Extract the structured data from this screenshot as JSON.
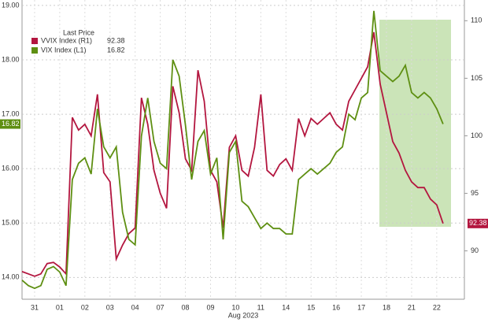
{
  "chart_data": {
    "type": "line",
    "legend_title": "Last Price",
    "x_label": "Aug 2023",
    "x": [
      0,
      0.25,
      0.5,
      0.75,
      1,
      1.25,
      1.5,
      1.75,
      2,
      2.25,
      2.5,
      2.75,
      3,
      3.25,
      3.5,
      3.75,
      4,
      4.25,
      4.5,
      4.75,
      5,
      5.25,
      5.5,
      5.75,
      6,
      6.25,
      6.5,
      6.75,
      7,
      7.25,
      7.5,
      7.75,
      8,
      8.25,
      8.5,
      8.75,
      9,
      9.25,
      9.5,
      9.75,
      10,
      10.25,
      10.5,
      10.75,
      11,
      11.25,
      11.5,
      11.75,
      12,
      12.25,
      12.5,
      12.75,
      13,
      13.25,
      13.5,
      13.75,
      14,
      14.25,
      14.5,
      14.75,
      15,
      15.25,
      15.5,
      15.75,
      16,
      16.25,
      16.5,
      16.75
    ],
    "xlim": [
      0,
      17.6
    ],
    "xticks": [
      {
        "value": 0.5,
        "label": "31"
      },
      {
        "value": 1.5,
        "label": "01"
      },
      {
        "value": 2.5,
        "label": "02"
      },
      {
        "value": 3.5,
        "label": "03"
      },
      {
        "value": 4.5,
        "label": "04"
      },
      {
        "value": 5.5,
        "label": "07"
      },
      {
        "value": 6.5,
        "label": "08"
      },
      {
        "value": 7.5,
        "label": "09"
      },
      {
        "value": 8.5,
        "label": "10"
      },
      {
        "value": 9.5,
        "label": "11"
      },
      {
        "value": 10.5,
        "label": "14"
      },
      {
        "value": 11.5,
        "label": "15"
      },
      {
        "value": 12.5,
        "label": "16"
      },
      {
        "value": 13.5,
        "label": "17"
      },
      {
        "value": 14.5,
        "label": "18"
      },
      {
        "value": 15.5,
        "label": "21"
      },
      {
        "value": 16.5,
        "label": "22"
      }
    ],
    "ylim": [
      13.6,
      19.1
    ],
    "yticks": [
      {
        "value": 14,
        "label": "14.00"
      },
      {
        "value": 15,
        "label": "15.00"
      },
      {
        "value": 16,
        "label": "16.00"
      },
      {
        "value": 17,
        "label": "17.00"
      },
      {
        "value": 18,
        "label": "18.00"
      },
      {
        "value": 19,
        "label": "19.00"
      }
    ],
    "y2lim": [
      85.8,
      111.8
    ],
    "y2ticks": [
      90,
      95,
      100,
      105,
      110
    ],
    "grid": true,
    "series": [
      {
        "name": "VVIX Index (R1)",
        "color": "#b3163f",
        "axis": "y2",
        "values": [
          88.2,
          88.0,
          87.8,
          88.0,
          88.9,
          89.0,
          88.6,
          88.0,
          101.6,
          100.5,
          101.0,
          100.0,
          103.6,
          96.8,
          96.0,
          89.3,
          90.5,
          91.5,
          92.0,
          103.3,
          101.0,
          97.0,
          95.0,
          93.7,
          104.3,
          102.0,
          98.0,
          97.0,
          105.7,
          103.0,
          97.0,
          96.0,
          92.0,
          99.0,
          100.0,
          97.0,
          96.5,
          99.0,
          103.6,
          97.0,
          96.5,
          97.5,
          98.0,
          97.0,
          101.5,
          100.0,
          101.5,
          101.0,
          101.5,
          102.0,
          101.0,
          100.5,
          103.0,
          104.0,
          105.0,
          106.0,
          109.0,
          104.5,
          102.0,
          99.5,
          98.5,
          97.0,
          96.0,
          95.5,
          95.5,
          94.5,
          94.0,
          92.38
        ]
      },
      {
        "name": "VIX Index (L1)",
        "color": "#5e8f12",
        "values": [
          13.95,
          13.85,
          13.8,
          13.85,
          14.15,
          14.2,
          14.1,
          13.85,
          15.8,
          16.1,
          16.2,
          15.9,
          17.1,
          16.4,
          16.2,
          16.4,
          15.2,
          14.7,
          14.6,
          16.6,
          17.3,
          16.5,
          16.1,
          16.0,
          18.0,
          17.7,
          16.8,
          15.8,
          16.5,
          16.7,
          15.9,
          16.2,
          14.7,
          16.3,
          16.5,
          15.4,
          15.3,
          15.1,
          14.9,
          15.0,
          14.9,
          14.9,
          14.8,
          14.8,
          15.8,
          15.9,
          16.0,
          15.9,
          16.0,
          16.1,
          16.3,
          16.4,
          17.0,
          16.9,
          17.3,
          17.4,
          18.9,
          17.8,
          17.7,
          17.6,
          17.7,
          17.9,
          17.4,
          17.3,
          17.4,
          17.3,
          17.1,
          16.82
        ]
      }
    ]
  }
}
